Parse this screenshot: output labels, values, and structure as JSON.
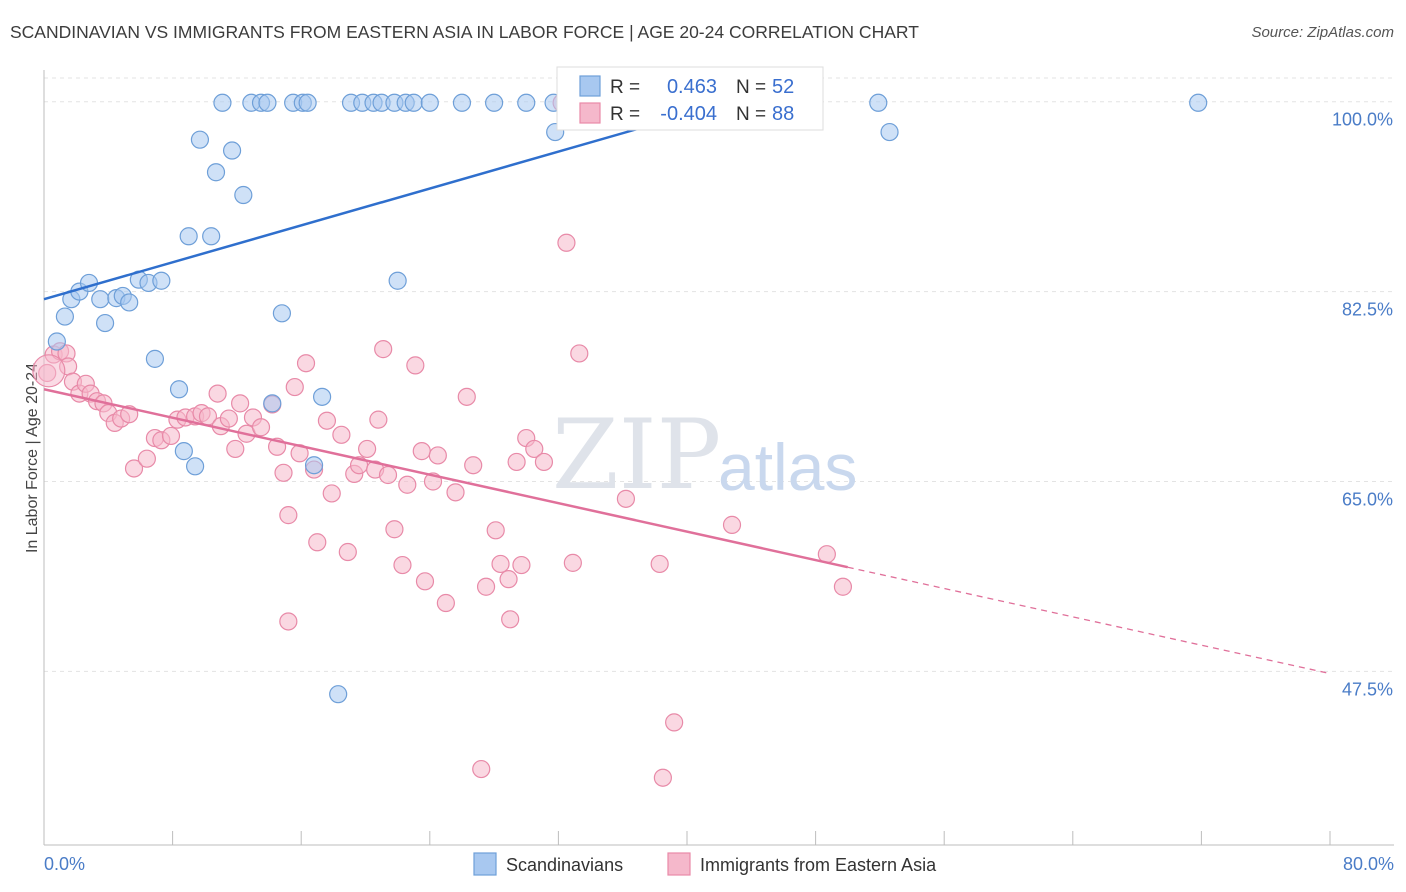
{
  "title": "SCANDINAVIAN VS IMMIGRANTS FROM EASTERN ASIA IN LABOR FORCE | AGE 20-24 CORRELATION CHART",
  "source": "Source: ZipAtlas.com",
  "watermark": {
    "zip": "ZIP",
    "atlas": "atlas"
  },
  "colors": {
    "blue_fill": "#a8c8f0",
    "blue_stroke": "#6e9fd8",
    "blue_line": "#2f6fcd",
    "pink_fill": "#f5b8cb",
    "pink_stroke": "#e88aa8",
    "pink_line": "#e0709a",
    "tick_text": "#4a7cc7",
    "grid": "#e3e3e3"
  },
  "legend": {
    "rows": [
      {
        "r_label": "R =",
        "r_value": "0.463",
        "n_label": "N =",
        "n_value": "52"
      },
      {
        "r_label": "R =",
        "r_value": "-0.404",
        "n_label": "N =",
        "n_value": "88"
      }
    ]
  },
  "chart_data": {
    "type": "scatter",
    "title": "SCANDINAVIAN VS IMMIGRANTS FROM EASTERN ASIA IN LABOR FORCE | AGE 20-24 CORRELATION CHART",
    "xlabel": "",
    "ylabel": "In Labor Force | Age 20-24",
    "xlim": [
      0,
      80
    ],
    "ylim": [
      31.5,
      102
    ],
    "x_tick_labels": [
      "0.0%",
      "80.0%"
    ],
    "y_ticks": [
      47.5,
      65.0,
      82.5,
      100.0
    ],
    "y_tick_labels": [
      "47.5%",
      "65.0%",
      "82.5%",
      "100.0%"
    ],
    "grid": true,
    "legend_position": "top-center",
    "series": [
      {
        "name": "Scandinavians",
        "r": 0.463,
        "n": 52,
        "trend": {
          "x": [
            0,
            43.3
          ],
          "y": [
            81.8,
            100.2
          ]
        },
        "points": [
          [
            0.8,
            77.9
          ],
          [
            1.3,
            80.2
          ],
          [
            1.7,
            81.8
          ],
          [
            2.2,
            82.5
          ],
          [
            2.8,
            83.3
          ],
          [
            3.5,
            81.8
          ],
          [
            3.8,
            79.6
          ],
          [
            4.5,
            81.9
          ],
          [
            4.9,
            82.1
          ],
          [
            5.3,
            81.5
          ],
          [
            5.9,
            83.6
          ],
          [
            6.5,
            83.3
          ],
          [
            7.3,
            83.5
          ],
          [
            6.9,
            76.3
          ],
          [
            8.4,
            73.5
          ],
          [
            9.0,
            87.6
          ],
          [
            9.7,
            96.5
          ],
          [
            10.4,
            87.6
          ],
          [
            10.7,
            93.5
          ],
          [
            11.7,
            95.5
          ],
          [
            12.4,
            91.4
          ],
          [
            11.1,
            99.9
          ],
          [
            12.9,
            99.9
          ],
          [
            13.5,
            99.9
          ],
          [
            13.9,
            99.9
          ],
          [
            15.5,
            99.9
          ],
          [
            16.1,
            99.9
          ],
          [
            16.4,
            99.9
          ],
          [
            14.2,
            72.2
          ],
          [
            14.8,
            80.5
          ],
          [
            19.1,
            99.9
          ],
          [
            19.8,
            99.9
          ],
          [
            20.5,
            99.9
          ],
          [
            21.0,
            99.9
          ],
          [
            21.8,
            99.9
          ],
          [
            22.5,
            99.9
          ],
          [
            23.0,
            99.9
          ],
          [
            22.0,
            83.5
          ],
          [
            24.0,
            99.9
          ],
          [
            26.0,
            99.9
          ],
          [
            28.0,
            99.9
          ],
          [
            30.0,
            99.9
          ],
          [
            31.7,
            99.9
          ],
          [
            31.8,
            97.2
          ],
          [
            8.7,
            67.8
          ],
          [
            9.4,
            66.4
          ],
          [
            16.8,
            66.5
          ],
          [
            17.3,
            72.8
          ],
          [
            18.3,
            45.4
          ],
          [
            51.9,
            99.9
          ],
          [
            52.6,
            97.2
          ],
          [
            71.8,
            99.9
          ]
        ]
      },
      {
        "name": "Immigrants from Eastern Asia",
        "r": -0.404,
        "n": 88,
        "trend": {
          "x": [
            0,
            50
          ],
          "y": [
            73.5,
            57.1
          ]
        },
        "trend_dashed": {
          "x": [
            50,
            80
          ],
          "y": [
            57.1,
            47.3
          ]
        },
        "points": [
          [
            0.2,
            75.0
          ],
          [
            0.6,
            76.7
          ],
          [
            1.0,
            77.0
          ],
          [
            1.4,
            76.8
          ],
          [
            1.5,
            75.6
          ],
          [
            1.8,
            74.2
          ],
          [
            2.2,
            73.1
          ],
          [
            2.6,
            74.0
          ],
          [
            2.9,
            73.1
          ],
          [
            3.3,
            72.4
          ],
          [
            3.7,
            72.2
          ],
          [
            4.0,
            71.3
          ],
          [
            4.4,
            70.4
          ],
          [
            4.8,
            70.8
          ],
          [
            5.3,
            71.2
          ],
          [
            5.6,
            66.2
          ],
          [
            6.4,
            67.1
          ],
          [
            6.9,
            69.0
          ],
          [
            7.3,
            68.8
          ],
          [
            7.9,
            69.2
          ],
          [
            8.3,
            70.7
          ],
          [
            8.8,
            70.9
          ],
          [
            9.4,
            71.0
          ],
          [
            9.8,
            71.3
          ],
          [
            10.2,
            71.0
          ],
          [
            10.8,
            73.1
          ],
          [
            11.0,
            70.1
          ],
          [
            11.5,
            70.8
          ],
          [
            11.9,
            68.0
          ],
          [
            12.2,
            72.2
          ],
          [
            12.6,
            69.4
          ],
          [
            13.0,
            70.9
          ],
          [
            13.5,
            70.0
          ],
          [
            14.2,
            72.1
          ],
          [
            14.5,
            68.2
          ],
          [
            14.9,
            65.8
          ],
          [
            15.2,
            61.9
          ],
          [
            15.6,
            73.7
          ],
          [
            15.9,
            67.6
          ],
          [
            16.3,
            75.9
          ],
          [
            16.8,
            66.1
          ],
          [
            17.0,
            59.4
          ],
          [
            17.6,
            70.6
          ],
          [
            17.9,
            63.9
          ],
          [
            18.5,
            69.3
          ],
          [
            18.9,
            58.5
          ],
          [
            19.3,
            65.7
          ],
          [
            19.6,
            66.5
          ],
          [
            20.1,
            68.0
          ],
          [
            20.6,
            66.1
          ],
          [
            20.8,
            70.7
          ],
          [
            21.1,
            77.2
          ],
          [
            21.4,
            65.6
          ],
          [
            21.8,
            60.6
          ],
          [
            22.3,
            57.3
          ],
          [
            22.6,
            64.7
          ],
          [
            23.1,
            75.7
          ],
          [
            23.5,
            67.8
          ],
          [
            23.7,
            55.8
          ],
          [
            24.2,
            65.0
          ],
          [
            24.5,
            67.4
          ],
          [
            25.0,
            53.8
          ],
          [
            25.6,
            64.0
          ],
          [
            26.3,
            72.8
          ],
          [
            26.7,
            66.5
          ],
          [
            27.5,
            55.3
          ],
          [
            28.1,
            60.5
          ],
          [
            28.4,
            57.4
          ],
          [
            28.9,
            56.0
          ],
          [
            29.4,
            66.8
          ],
          [
            29.7,
            57.3
          ],
          [
            30.0,
            69.0
          ],
          [
            30.5,
            68.0
          ],
          [
            31.1,
            66.8
          ],
          [
            32.2,
            99.9
          ],
          [
            32.5,
            87.0
          ],
          [
            32.9,
            57.5
          ],
          [
            33.3,
            76.8
          ],
          [
            36.2,
            63.4
          ],
          [
            38.3,
            57.4
          ],
          [
            39.2,
            42.8
          ],
          [
            42.8,
            61.0
          ],
          [
            48.7,
            58.3
          ],
          [
            49.7,
            55.3
          ],
          [
            27.2,
            38.5
          ],
          [
            38.5,
            37.7
          ],
          [
            15.2,
            52.1
          ],
          [
            29.0,
            52.3
          ]
        ]
      }
    ]
  },
  "bottom_legend": {
    "items": [
      {
        "label": "Scandinavians"
      },
      {
        "label": "Immigrants from Eastern Asia"
      }
    ]
  }
}
